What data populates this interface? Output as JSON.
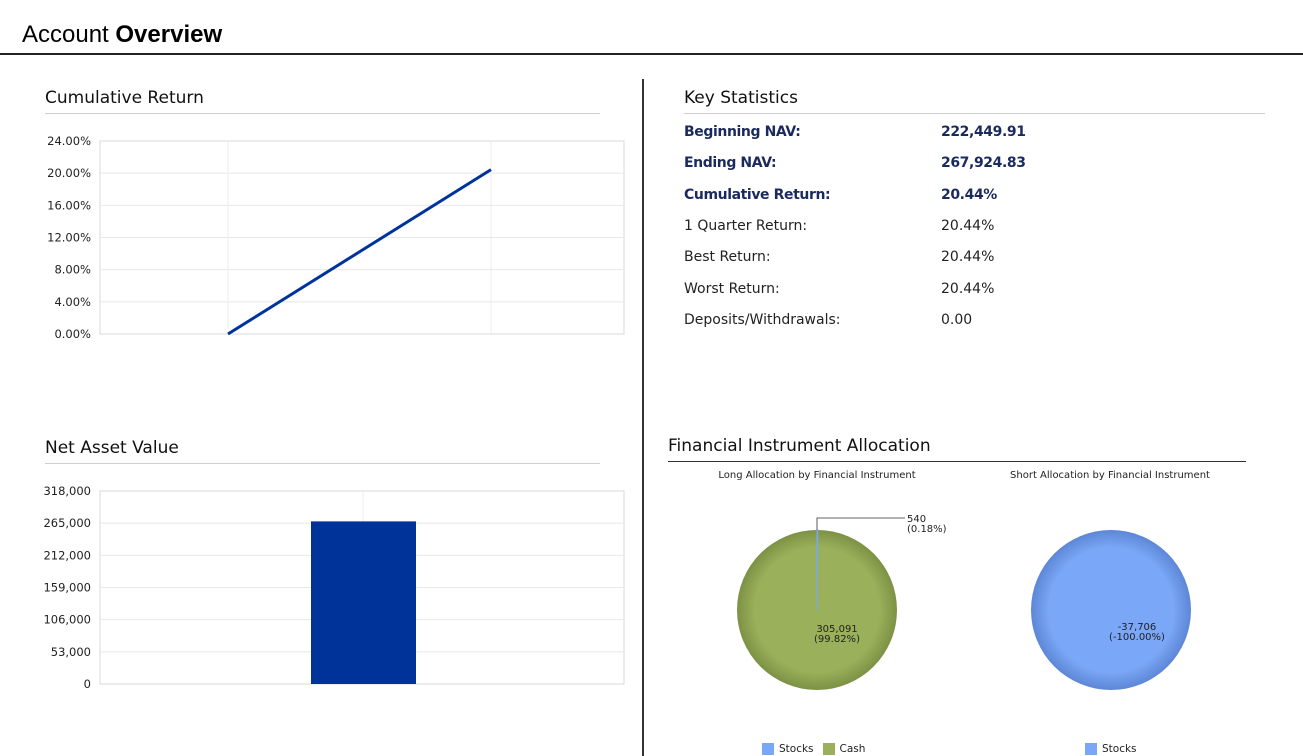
{
  "header": {
    "title_prefix": "Account",
    "title_strong": "Overview"
  },
  "cumulative_return": {
    "title": "Cumulative Return",
    "chart_data": {
      "type": "line",
      "x": [
        0,
        1
      ],
      "y": [
        0.0,
        20.44
      ],
      "yticks": [
        "24.00%",
        "20.00%",
        "16.00%",
        "12.00%",
        "8.00%",
        "4.00%",
        "0.00%"
      ],
      "ylim": [
        0,
        24
      ],
      "grid": true,
      "color": "#003399"
    }
  },
  "net_asset_value": {
    "title": "Net Asset Value",
    "chart_data": {
      "type": "bar",
      "values": [
        267924.83
      ],
      "yticks": [
        "318,000",
        "265,000",
        "212,000",
        "159,000",
        "106,000",
        "53,000",
        "0"
      ],
      "ylim": [
        0,
        318000
      ],
      "grid": true,
      "color": "#003399"
    }
  },
  "key_statistics": {
    "title": "Key Statistics",
    "rows": [
      {
        "label": "Beginning NAV:",
        "value": "222,449.91",
        "bold": true
      },
      {
        "label": "Ending NAV:",
        "value": "267,924.83",
        "bold": true
      },
      {
        "label": "Cumulative Return:",
        "value": "20.44%",
        "bold": true
      },
      {
        "label": "1 Quarter Return:",
        "value": "20.44%",
        "bold": false
      },
      {
        "label": "Best Return:",
        "value": "20.44%",
        "bold": false
      },
      {
        "label": "Worst Return:",
        "value": "20.44%",
        "bold": false
      },
      {
        "label": "Deposits/Withdrawals:",
        "value": "0.00",
        "bold": false
      }
    ]
  },
  "financial_allocation": {
    "title": "Financial Instrument Allocation",
    "long": {
      "subtitle": "Long Allocation by Financial Instrument",
      "chart_data": {
        "type": "pie",
        "slices": [
          {
            "name": "Stocks",
            "value": 540,
            "value_label": "540",
            "pct_label": "(0.18%)",
            "color": "#7aa7f7"
          },
          {
            "name": "Cash",
            "value": 305091,
            "value_label": "305,091",
            "pct_label": "(99.82%)",
            "color": "#9bb05a"
          }
        ]
      }
    },
    "short": {
      "subtitle": "Short Allocation by Financial Instrument",
      "chart_data": {
        "type": "pie",
        "slices": [
          {
            "name": "Stocks",
            "value": -37706,
            "value_label": "-37,706",
            "pct_label": "(-100.00%)",
            "color": "#7aa7f7"
          }
        ]
      }
    }
  }
}
